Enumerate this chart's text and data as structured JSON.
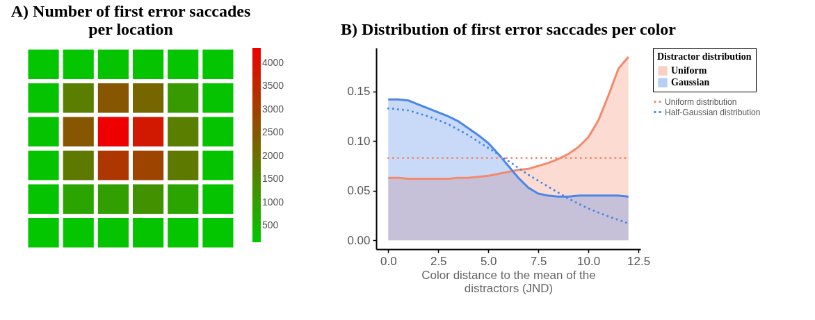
{
  "chart_data": [
    {
      "type": "heatmap",
      "title": "A)  Number of first error saccades per location",
      "categories": [
        null,
        null,
        null,
        null,
        null,
        null
      ],
      "y_categories": [
        null,
        null,
        null,
        null,
        null,
        null
      ],
      "cells": [
        [
          200,
          220,
          250,
          250,
          230,
          200
        ],
        [
          250,
          1700,
          2500,
          2200,
          1100,
          250
        ],
        [
          250,
          2500,
          4330,
          3800,
          1700,
          250
        ],
        [
          250,
          1800,
          3200,
          2900,
          1800,
          250
        ],
        [
          250,
          900,
          1000,
          1300,
          900,
          250
        ],
        [
          200,
          220,
          250,
          250,
          230,
          200
        ]
      ],
      "clim": [
        140,
        4330
      ],
      "cticks": [
        500,
        1000,
        1500,
        2000,
        2500,
        3000,
        3500,
        4000
      ],
      "tick_labels": false
    },
    {
      "type": "area",
      "title": "B) Distribution of first error saccades per color",
      "xlabel": "Color distance to the mean of the distractors (JND)",
      "legend_title": "Distractor distribution",
      "legend": "right",
      "grid": false,
      "x": [
        0,
        0.5,
        1,
        2,
        2.5,
        3,
        3.5,
        4,
        4.5,
        5,
        5.5,
        6,
        6.5,
        7,
        7.5,
        8,
        8.5,
        9,
        9.5,
        10,
        10.5,
        11,
        11.5,
        12
      ],
      "series": [
        {
          "name": "Uniform",
          "type": "area",
          "color": "#f4896b",
          "values": [
            0.063,
            0.063,
            0.062,
            0.062,
            0.062,
            0.062,
            0.063,
            0.063,
            0.064,
            0.065,
            0.067,
            0.069,
            0.071,
            0.072,
            0.075,
            0.078,
            0.082,
            0.087,
            0.094,
            0.104,
            0.121,
            0.146,
            0.173,
            0.185
          ]
        },
        {
          "name": "Gaussian",
          "type": "area",
          "color": "#4a86e8",
          "values": [
            0.142,
            0.142,
            0.141,
            0.133,
            0.129,
            0.125,
            0.12,
            0.113,
            0.106,
            0.098,
            0.087,
            0.075,
            0.063,
            0.053,
            0.047,
            0.045,
            0.044,
            0.044,
            0.045,
            0.045,
            0.045,
            0.045,
            0.045,
            0.044
          ]
        },
        {
          "name": "Uniform distribution",
          "type": "line",
          "line_style": "dotted",
          "color": "#f4896b",
          "x": [
            0,
            12
          ],
          "values": [
            0.083,
            0.083
          ]
        },
        {
          "name": "Half-Gaussian distribution",
          "type": "line",
          "line_style": "dotted",
          "color": "#4a86e8",
          "x": [
            0,
            1,
            2,
            3,
            4,
            5,
            6,
            7,
            8,
            9,
            10,
            11,
            12
          ],
          "values": [
            0.133,
            0.131,
            0.125,
            0.117,
            0.106,
            0.093,
            0.08,
            0.066,
            0.054,
            0.042,
            0.032,
            0.024,
            0.017
          ]
        }
      ],
      "xlim": [
        -0.6,
        12.6
      ],
      "xticks": [
        {
          "value": 0,
          "label": "0.0"
        },
        2.5,
        {
          "value": 5,
          "label": "5.0"
        },
        7.5,
        {
          "value": 10,
          "label": "10.0"
        },
        12.5
      ],
      "ylim": [
        -0.009,
        0.194
      ],
      "yticks": [
        {
          "value": 0,
          "label": "0.00"
        },
        0.05,
        {
          "value": 0.1,
          "label": "0.10"
        },
        0.15
      ]
    }
  ]
}
